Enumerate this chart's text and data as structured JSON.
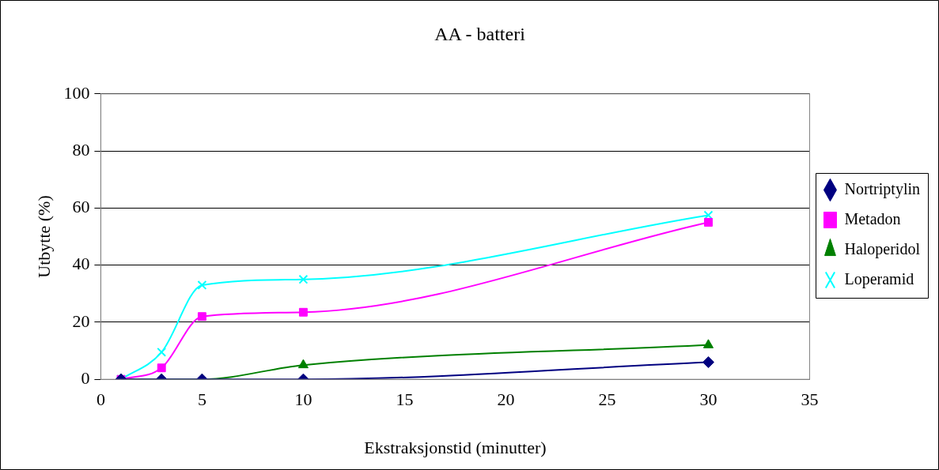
{
  "chart_data": {
    "type": "line",
    "title": "AA - batteri",
    "xlabel": "Ekstraksjonstid (minutter)",
    "ylabel": "Utbytte (%)",
    "x": [
      1,
      3,
      5,
      10,
      30
    ],
    "series": [
      {
        "name": "Nortriptylin",
        "color": "#000080",
        "marker": "diamond",
        "values": [
          0,
          0,
          0,
          0,
          6
        ]
      },
      {
        "name": "Metadon",
        "color": "#ff00ff",
        "marker": "square",
        "values": [
          0,
          4,
          22,
          23.5,
          55
        ]
      },
      {
        "name": "Haloperidol",
        "color": "#008000",
        "marker": "triangle",
        "values": [
          0,
          0,
          0,
          5,
          12
        ]
      },
      {
        "name": "Loperamid",
        "color": "#00ffff",
        "marker": "cross",
        "values": [
          0,
          9.5,
          33,
          35,
          57.5
        ]
      }
    ],
    "xlim": [
      0,
      35
    ],
    "xticks": [
      0,
      5,
      10,
      15,
      20,
      25,
      30,
      35
    ],
    "ylim": [
      0,
      100
    ],
    "yticks": [
      0,
      20,
      40,
      60,
      80,
      100
    ],
    "grid": "y",
    "legend": "right",
    "line_style": "solid"
  }
}
